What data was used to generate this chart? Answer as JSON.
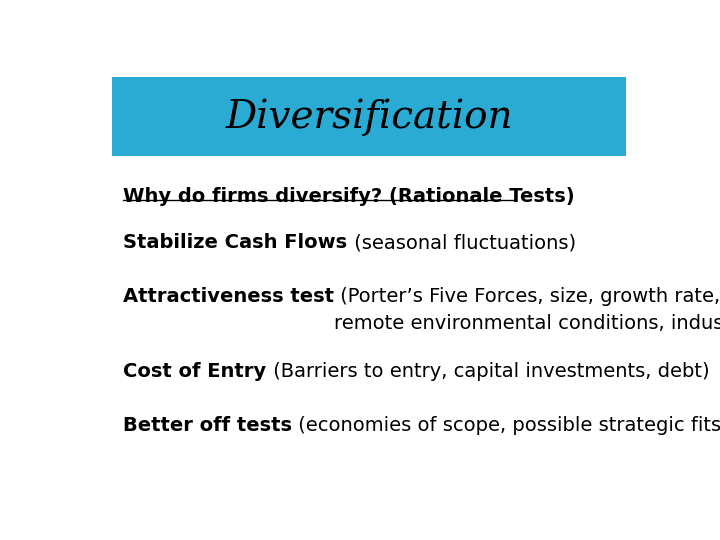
{
  "title": "Diversification",
  "title_bg_color": "#29ABD4",
  "title_text_color": "#000000",
  "title_fontsize": 28,
  "bg_color": "#FFFFFF",
  "body_text_color": "#000000",
  "subtitle": "Why do firms diversify? (Rationale Tests)",
  "subtitle_fontsize": 14,
  "bullets": [
    {
      "bold_part": "Stabilize Cash Flows",
      "normal_part": " (seasonal fluctuations)",
      "fontsize": 14
    },
    {
      "bold_part": "Attractiveness test",
      "normal_part": " (Porter’s Five Forces, size, growth rate,\nremote environmental conditions, industry profit margins)",
      "fontsize": 14
    },
    {
      "bold_part": "Cost of Entry",
      "normal_part": " (Barriers to entry, capital investments, debt)",
      "fontsize": 14
    },
    {
      "bold_part": "Better off tests",
      "normal_part": " (economies of scope, possible strategic fits)",
      "fontsize": 14
    }
  ]
}
